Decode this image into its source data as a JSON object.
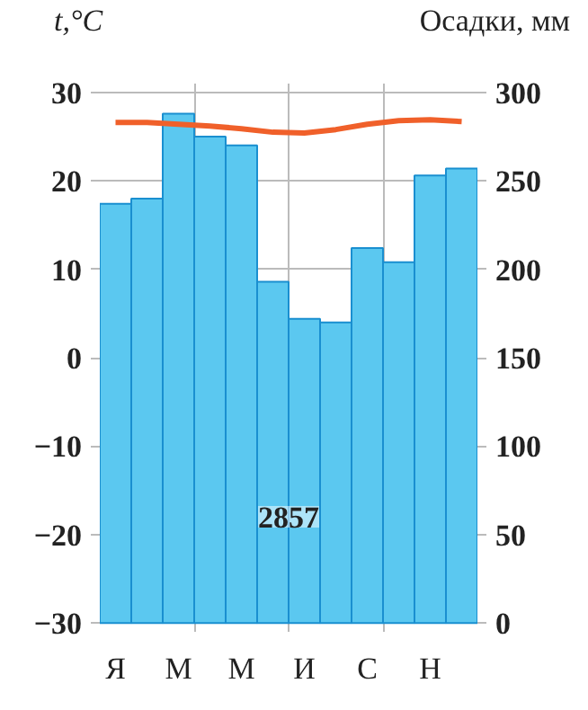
{
  "chart_data": {
    "type": "bar",
    "ylabel": "t,°C",
    "y2label": "Осадки, мм",
    "categories": [
      "Я",
      null,
      "М",
      null,
      "М",
      null,
      "И",
      null,
      "С",
      null,
      "Н",
      null
    ],
    "series": [
      {
        "axis": "y2",
        "color": "#5bc8f0",
        "values": [
          237,
          240,
          288,
          275,
          270,
          193,
          172,
          170,
          212,
          204,
          253,
          257
        ]
      },
      {
        "type": "line",
        "axis": "y",
        "color": "#f0602a",
        "values": [
          26.6,
          26.6,
          26.4,
          26.2,
          25.9,
          25.5,
          25.4,
          25.8,
          26.4,
          26.8,
          26.9,
          26.7
        ]
      }
    ],
    "ylim": [
      -31,
      31
    ],
    "yticks": [
      -30,
      -20,
      -10,
      0,
      10,
      20,
      30
    ],
    "y2lim": [
      -5,
      305
    ],
    "y2ticks": [
      0,
      50,
      100,
      150,
      200,
      250,
      300
    ],
    "annotations": [
      "2857"
    ],
    "grid": true,
    "marker": "none",
    "line_style": "solid"
  }
}
